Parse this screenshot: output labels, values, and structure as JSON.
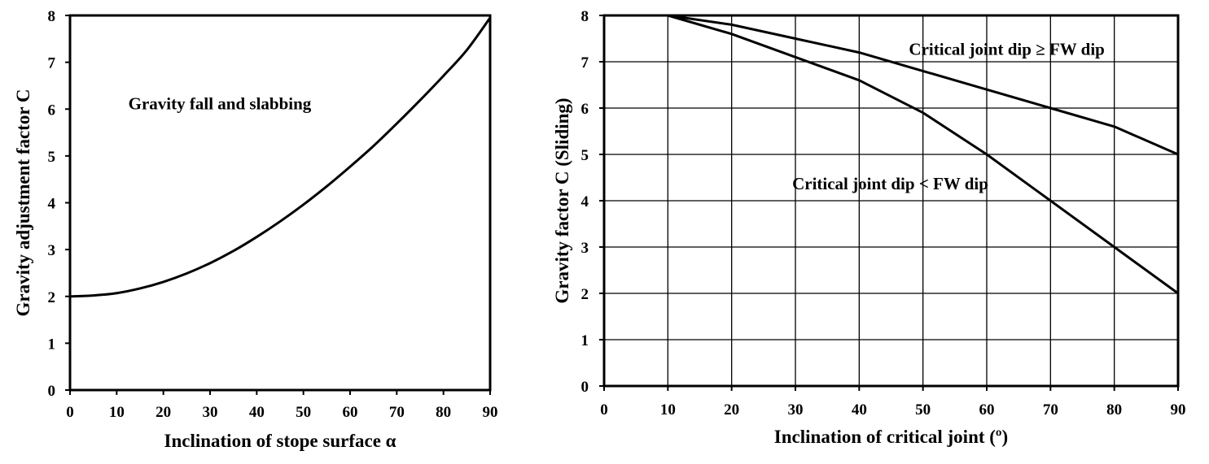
{
  "chart_data": [
    {
      "type": "line",
      "title": "",
      "xlabel": "Inclination of stope surface α",
      "ylabel": "Gravity adjustment factor C",
      "xlim": [
        0,
        90
      ],
      "ylim": [
        0,
        8
      ],
      "xticks": [
        0,
        10,
        20,
        30,
        40,
        50,
        60,
        70,
        80,
        90
      ],
      "yticks": [
        0,
        1,
        2,
        3,
        4,
        5,
        6,
        7,
        8
      ],
      "grid": false,
      "series": [
        {
          "x": [
            0,
            5,
            10,
            15,
            20,
            25,
            30,
            35,
            40,
            45,
            50,
            55,
            60,
            65,
            70,
            75,
            80,
            85,
            90
          ],
          "values": [
            2.0,
            2.02,
            2.07,
            2.17,
            2.31,
            2.49,
            2.71,
            2.97,
            3.27,
            3.6,
            3.96,
            4.35,
            4.77,
            5.21,
            5.69,
            6.19,
            6.71,
            7.26,
            7.95
          ]
        }
      ],
      "annotations": [
        {
          "text": "Gravity fall and slabbing",
          "x": 12.5,
          "y": 6.0
        }
      ]
    },
    {
      "type": "line",
      "title": "",
      "xlabel": "Inclination of critical joint (º)",
      "ylabel": "Gravity factor C (Sliding)",
      "xlim": [
        0,
        90
      ],
      "ylim": [
        0,
        8
      ],
      "xticks": [
        0,
        10,
        20,
        30,
        40,
        50,
        60,
        70,
        80,
        90
      ],
      "yticks": [
        0,
        1,
        2,
        3,
        4,
        5,
        6,
        7,
        8
      ],
      "grid": true,
      "series": [
        {
          "x": [
            10,
            20,
            30,
            40,
            50,
            60,
            70,
            80,
            90
          ],
          "values": [
            8.0,
            7.8,
            7.5,
            7.2,
            6.8,
            6.4,
            6.0,
            5.6,
            5.0
          ]
        },
        {
          "x": [
            10,
            20,
            30,
            40,
            50,
            60,
            70,
            80,
            90
          ],
          "values": [
            8.0,
            7.6,
            7.1,
            6.6,
            5.9,
            5.0,
            4.0,
            3.0,
            2.0
          ]
        }
      ],
      "annotations": [
        {
          "text": "Critical joint dip ≥ FW dip",
          "x": 47.8,
          "y": 7.15
        },
        {
          "text": "Critical joint dip < FW dip",
          "x": 29.5,
          "y": 4.25
        }
      ]
    }
  ]
}
